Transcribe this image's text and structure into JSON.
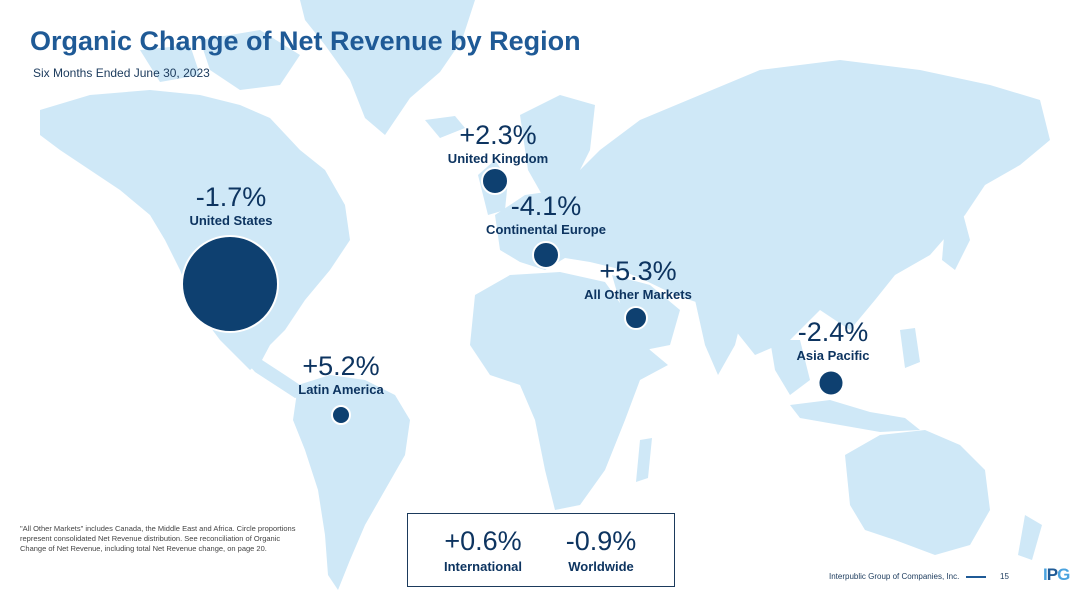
{
  "title": "Organic Change of Net Revenue by Region",
  "subtitle": "Six Months Ended June 30, 2023",
  "regions": [
    {
      "name": "United States",
      "change": "-1.7%"
    },
    {
      "name": "United Kingdom",
      "change": "+2.3%"
    },
    {
      "name": "Continental Europe",
      "change": "-4.1%"
    },
    {
      "name": "All Other Markets",
      "change": "+5.3%"
    },
    {
      "name": "Latin America",
      "change": "+5.2%"
    },
    {
      "name": "Asia Pacific",
      "change": "-2.4%"
    }
  ],
  "totals": {
    "international": {
      "label": "International",
      "change": "+0.6%"
    },
    "worldwide": {
      "label": "Worldwide",
      "change": "-0.9%"
    }
  },
  "footnote": "\"All Other Markets\" includes Canada, the Middle East and Africa. Circle proportions represent consolidated Net Revenue distribution. See reconciliation of Organic Change of Net Revenue, including total Net Revenue change, on page 20.",
  "footer": {
    "company": "Interpublic Group of Companies, Inc.",
    "page_number": "15",
    "logo": {
      "part1": "I",
      "part2": "P",
      "part3": "G"
    }
  },
  "colors": {
    "land": "#cfe8f7",
    "bubble": "#0e4070",
    "title": "#1f5a96",
    "text": "#0d3460"
  }
}
